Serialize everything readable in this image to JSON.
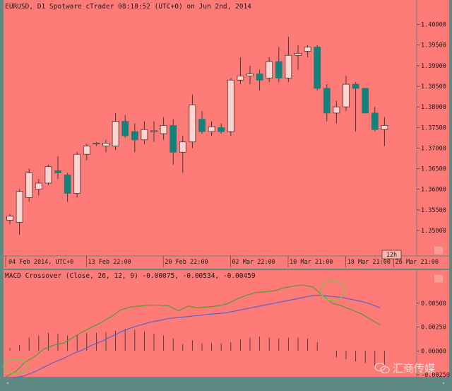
{
  "title": "EURUSD, D1 Spotware cTrader 08:18:52 (UTC+0) on Jun 2nd, 2014",
  "zoom_badge": "12h",
  "watermark": "汇商传媒",
  "colors": {
    "background": "#ff7b78",
    "frame": "#5f8a84",
    "bull_body": "#ffd3cf",
    "bear_body": "#16807a",
    "candle_outline": "#3a3a3a",
    "macd_line": "#5a9a3a",
    "signal_line": "#6060c8",
    "highlight_circle": "#8ab850"
  },
  "chart_data": [
    {
      "name": "price",
      "type": "candlestick",
      "title": "EURUSD, D1 Spotware cTrader 08:18:52 (UTC+0) on Jun 2nd, 2014",
      "ylim": [
        1.3452,
        1.4025
      ],
      "y_ticks": [
        "1.40000",
        "1.39500",
        "1.39000",
        "1.38500",
        "1.38000",
        "1.37500",
        "1.37000",
        "1.36500",
        "1.36000",
        "1.35500",
        "1.35000"
      ],
      "x_tick_labels": [
        "04 Feb 2014, UTC+0",
        "13 Feb 22:00",
        "20 Feb 22:00",
        "02 Mar 22:00",
        "10 Mar 21:00",
        "18 Mar 21:00",
        "26 Mar 21:00"
      ],
      "ohlc": [
        [
          1.3525,
          1.354,
          1.3515,
          1.3535
        ],
        [
          1.352,
          1.36,
          1.349,
          1.3595
        ],
        [
          1.358,
          1.365,
          1.357,
          1.364
        ],
        [
          1.36,
          1.3625,
          1.3585,
          1.3615
        ],
        [
          1.3615,
          1.366,
          1.361,
          1.3655
        ],
        [
          1.3645,
          1.368,
          1.3625,
          1.364
        ],
        [
          1.3635,
          1.364,
          1.357,
          1.359
        ],
        [
          1.359,
          1.369,
          1.358,
          1.3685
        ],
        [
          1.3685,
          1.371,
          1.367,
          1.3705
        ],
        [
          1.371,
          1.3715,
          1.3705,
          1.3712
        ],
        [
          1.3705,
          1.372,
          1.369,
          1.3712
        ],
        [
          1.3705,
          1.3785,
          1.3695,
          1.3765
        ],
        [
          1.3765,
          1.378,
          1.3725,
          1.373
        ],
        [
          1.374,
          1.376,
          1.369,
          1.372
        ],
        [
          1.372,
          1.3765,
          1.371,
          1.3745
        ],
        [
          1.374,
          1.3765,
          1.3715,
          1.3742
        ],
        [
          1.3735,
          1.3775,
          1.372,
          1.3755
        ],
        [
          1.3755,
          1.377,
          1.366,
          1.369
        ],
        [
          1.369,
          1.373,
          1.364,
          1.3715
        ],
        [
          1.3715,
          1.383,
          1.37,
          1.3805
        ],
        [
          1.377,
          1.379,
          1.3735,
          1.374
        ],
        [
          1.374,
          1.3765,
          1.373,
          1.3752
        ],
        [
          1.375,
          1.376,
          1.3735,
          1.374
        ],
        [
          1.374,
          1.387,
          1.373,
          1.3865
        ],
        [
          1.3865,
          1.392,
          1.3855,
          1.3875
        ],
        [
          1.3875,
          1.39,
          1.3855,
          1.388
        ],
        [
          1.388,
          1.389,
          1.384,
          1.3865
        ],
        [
          1.387,
          1.392,
          1.386,
          1.391
        ],
        [
          1.391,
          1.3945,
          1.386,
          1.387
        ],
        [
          1.387,
          1.397,
          1.386,
          1.3925
        ],
        [
          1.3925,
          1.395,
          1.389,
          1.393
        ],
        [
          1.3935,
          1.395,
          1.392,
          1.3945
        ],
        [
          1.3945,
          1.395,
          1.384,
          1.3845
        ],
        [
          1.3845,
          1.3855,
          1.3765,
          1.3785
        ],
        [
          1.3785,
          1.3815,
          1.376,
          1.38
        ],
        [
          1.38,
          1.3875,
          1.379,
          1.3855
        ],
        [
          1.3855,
          1.386,
          1.374,
          1.3845
        ],
        [
          1.3845,
          1.3845,
          1.3785,
          1.3785
        ],
        [
          1.3785,
          1.38,
          1.374,
          1.3745
        ],
        [
          1.3745,
          1.3775,
          1.3705,
          1.3755
        ]
      ]
    },
    {
      "name": "macd",
      "type": "line",
      "title": "MACD Crossover (Close, 26, 12, 9) -0.00075, -0.00534, -0.00459",
      "ylim": [
        -0.0025,
        0.0075
      ],
      "y_ticks": [
        "0.00500",
        "0.00250",
        "0.00000",
        "-0.00250"
      ],
      "series": [
        {
          "name": "MACD",
          "values": [
            -0.0027,
            -0.0022,
            -0.0012,
            -0.0006,
            0.0002,
            0.0006,
            0.0008,
            0.0014,
            0.002,
            0.0025,
            0.003,
            0.0036,
            0.0043,
            0.0046,
            0.0047,
            0.0048,
            0.0048,
            0.0047,
            0.0042,
            0.0047,
            0.0045,
            0.0046,
            0.0047,
            0.0049,
            0.0054,
            0.0058,
            0.0061,
            0.0062,
            0.0063,
            0.0066,
            0.0068,
            0.0069,
            0.0067,
            0.0058,
            0.005,
            0.0047,
            0.0043,
            0.0039,
            0.0033,
            0.0027
          ]
        },
        {
          "name": "Signal",
          "values": [
            -0.003,
            -0.0028,
            -0.0026,
            -0.0022,
            -0.0017,
            -0.0012,
            -0.0008,
            -0.0003,
            0.0001,
            0.0006,
            0.001,
            0.0015,
            0.002,
            0.0024,
            0.0027,
            0.003,
            0.0032,
            0.0034,
            0.0035,
            0.0036,
            0.0037,
            0.0038,
            0.0039,
            0.004,
            0.0042,
            0.0044,
            0.0046,
            0.0048,
            0.005,
            0.0052,
            0.0054,
            0.0056,
            0.0058,
            0.0058,
            0.0057,
            0.0056,
            0.0054,
            0.0052,
            0.0049,
            0.0045
          ]
        },
        {
          "name": "Histogram",
          "values": [
            0.0003,
            0.0006,
            0.0014,
            0.0016,
            0.0019,
            0.0018,
            0.0016,
            0.0017,
            0.0019,
            0.0019,
            0.002,
            0.0021,
            0.0023,
            0.0022,
            0.002,
            0.0018,
            0.0016,
            0.0013,
            0.0007,
            0.0011,
            0.0008,
            0.0008,
            0.0008,
            0.0009,
            0.0012,
            0.0014,
            0.0015,
            0.0014,
            0.0013,
            0.0014,
            0.0014,
            0.0013,
            0.0009,
            0.0,
            -0.0007,
            -0.0009,
            -0.0011,
            -0.0013,
            -0.0016,
            -0.0018
          ]
        }
      ]
    }
  ]
}
